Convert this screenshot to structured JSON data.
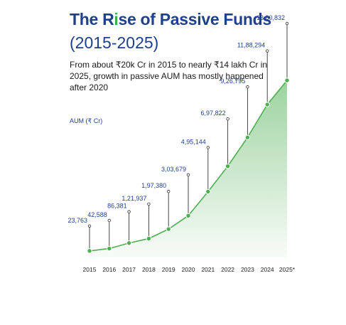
{
  "title_parts": {
    "p1": "The R",
    "p2": "i",
    "p3": "se of Passive Funds"
  },
  "subtitle": "(2015-2025)",
  "description": "From about ₹20k Cr in 2015 to nearly ₹14 lakh Cr in 2025, growth in passive AUM has mostly happened after 2020",
  "colors": {
    "title": "#1f3f8f",
    "accent": "#3fae49",
    "line": "#4caf50",
    "label": "#1f3f8f"
  },
  "chart_data": {
    "type": "area",
    "ylabel": "AUM (₹ Cr)",
    "categories": [
      "2015",
      "2016",
      "2017",
      "2018",
      "2019",
      "2020",
      "2021",
      "2022",
      "2023",
      "2024",
      "2025*"
    ],
    "values": [
      23763,
      42588,
      86381,
      121937,
      197380,
      303679,
      495144,
      697822,
      926795,
      1188294,
      1380832
    ],
    "value_labels": [
      "23,763",
      "42,588",
      "86,381",
      "1,21,937",
      "1,97,380",
      "3,03,679",
      "4,95,144",
      "6,97,822",
      "9,26,795",
      "11,88,294",
      "13,80,832"
    ],
    "ylim": [
      0,
      1380832
    ],
    "grid": false,
    "legend": "none"
  }
}
